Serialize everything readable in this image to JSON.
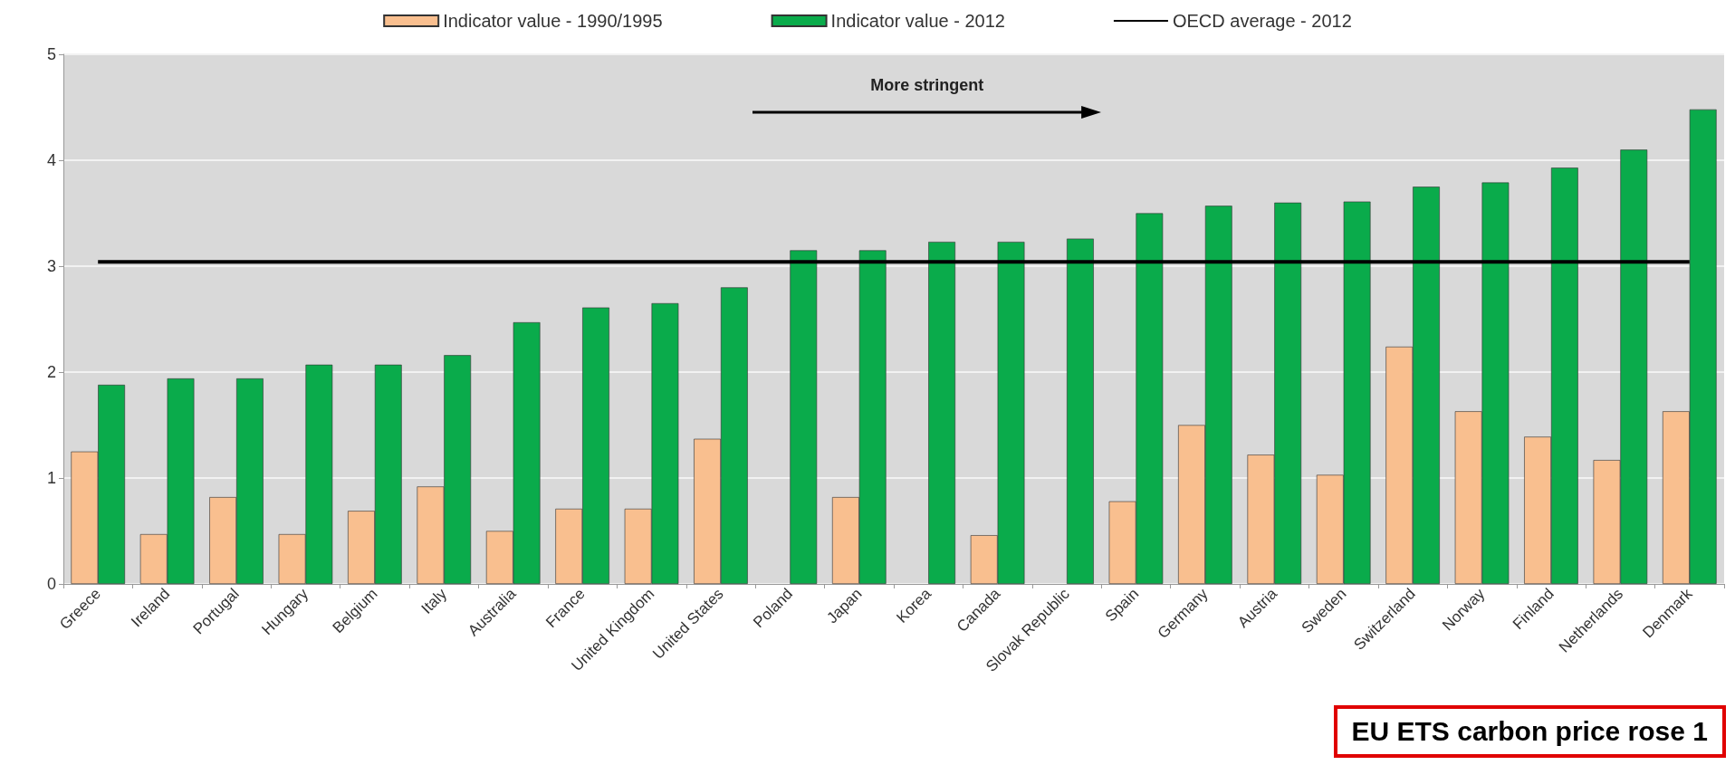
{
  "chart_data": {
    "type": "bar",
    "categories": [
      "Greece",
      "Ireland",
      "Portugal",
      "Hungary",
      "Belgium",
      "Italy",
      "Australia",
      "France",
      "United Kingdom",
      "United States",
      "Poland",
      "Japan",
      "Korea",
      "Canada",
      "Slovak Republic",
      "Spain",
      "Germany",
      "Austria",
      "Sweden",
      "Switzerland",
      "Norway",
      "Finland",
      "Netherlands",
      "Denmark"
    ],
    "series": [
      {
        "name": "Indicator value - 1990/1995",
        "color": "#f9bf8f",
        "values": [
          1.25,
          0.47,
          0.82,
          0.47,
          0.69,
          0.92,
          0.5,
          0.71,
          0.71,
          1.37,
          null,
          0.82,
          null,
          0.46,
          null,
          0.78,
          1.5,
          1.22,
          1.03,
          2.24,
          1.63,
          1.39,
          1.17,
          1.63
        ]
      },
      {
        "name": "Indicator value - 2012",
        "color": "#0aab4b",
        "values": [
          1.88,
          1.94,
          1.94,
          2.07,
          2.07,
          2.16,
          2.47,
          2.61,
          2.65,
          2.8,
          3.15,
          3.15,
          3.23,
          3.23,
          3.26,
          3.5,
          3.57,
          3.6,
          3.61,
          3.75,
          3.79,
          3.93,
          4.1,
          4.48
        ]
      },
      {
        "name": "OECD average - 2012",
        "type": "line",
        "color": "#000000",
        "marker": "none",
        "values": [
          3.04,
          3.04,
          3.04,
          3.04,
          3.04,
          3.04,
          3.04,
          3.04,
          3.04,
          3.04,
          3.04,
          3.04,
          3.04,
          3.04,
          3.04,
          3.04,
          3.04,
          3.04,
          3.04,
          3.04,
          3.04,
          3.04,
          3.04,
          3.04
        ]
      }
    ],
    "ylim": [
      0,
      5
    ],
    "yticks": [
      0,
      1,
      2,
      3,
      4,
      5
    ],
    "grid": "y",
    "legend": "top",
    "annotations": [
      "More stringent",
      "EU ETS carbon price rose 1"
    ]
  }
}
